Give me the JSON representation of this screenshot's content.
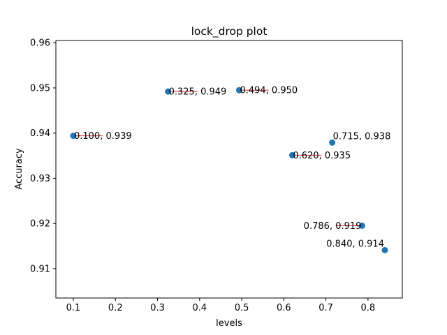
{
  "chart_data": {
    "type": "scatter",
    "title": "lock_drop plot",
    "xlabel": "levels",
    "ylabel": "Accuracy",
    "xlim": [
      0.0585,
      0.8815
    ],
    "ylim": [
      0.9035,
      0.9605
    ],
    "xticks": [
      0.1,
      0.2,
      0.3,
      0.4,
      0.5,
      0.6,
      0.7,
      0.8
    ],
    "xtick_labels": [
      "0.1",
      "0.2",
      "0.3",
      "0.4",
      "0.5",
      "0.6",
      "0.7",
      "0.8"
    ],
    "yticks": [
      0.91,
      0.92,
      0.93,
      0.94,
      0.95,
      0.96
    ],
    "ytick_labels": [
      "0.91",
      "0.92",
      "0.93",
      "0.94",
      "0.95",
      "0.96"
    ],
    "grid": false,
    "marker_color": "#1f77b4",
    "connector_color": "#d62728",
    "points": [
      {
        "x": 0.1,
        "y": 0.9394,
        "label": "0.100, 0.939",
        "anchor": "start"
      },
      {
        "x": 0.325,
        "y": 0.9492,
        "label": "0.325, 0.949",
        "anchor": "start"
      },
      {
        "x": 0.494,
        "y": 0.9495,
        "label": "0.494, 0.950",
        "anchor": "start"
      },
      {
        "x": 0.62,
        "y": 0.9351,
        "label": "0.620, 0.935",
        "anchor": "start"
      },
      {
        "x": 0.715,
        "y": 0.9379,
        "label": "0.715, 0.938",
        "anchor": "start-above"
      },
      {
        "x": 0.786,
        "y": 0.9195,
        "label": "0.786, 0.919",
        "anchor": "end"
      },
      {
        "x": 0.84,
        "y": 0.9141,
        "label": "0.840, 0.914",
        "anchor": "end-above"
      }
    ]
  }
}
